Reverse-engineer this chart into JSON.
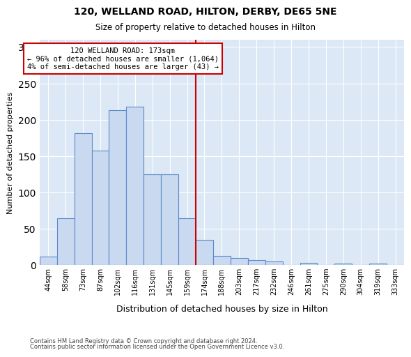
{
  "title": "120, WELLAND ROAD, HILTON, DERBY, DE65 5NE",
  "subtitle": "Size of property relative to detached houses in Hilton",
  "xlabel": "Distribution of detached houses by size in Hilton",
  "ylabel": "Number of detached properties",
  "bar_labels": [
    "44sqm",
    "58sqm",
    "73sqm",
    "87sqm",
    "102sqm",
    "116sqm",
    "131sqm",
    "145sqm",
    "159sqm",
    "174sqm",
    "188sqm",
    "203sqm",
    "217sqm",
    "232sqm",
    "246sqm",
    "261sqm",
    "275sqm",
    "290sqm",
    "304sqm",
    "319sqm",
    "333sqm"
  ],
  "bar_heights": [
    12,
    65,
    182,
    158,
    213,
    218,
    125,
    125,
    65,
    35,
    13,
    10,
    7,
    5,
    0,
    3,
    0,
    2,
    0,
    2,
    0
  ],
  "bar_color": "#c9d9f0",
  "bar_edge_color": "#5b8ac9",
  "vline_bin_index": 9,
  "vline_color": "#cc0000",
  "annotation_text": "120 WELLAND ROAD: 173sqm\n← 96% of detached houses are smaller (1,064)\n4% of semi-detached houses are larger (43) →",
  "annotation_box_edgecolor": "#cc0000",
  "ylim": [
    0,
    310
  ],
  "yticks": [
    0,
    50,
    100,
    150,
    200,
    250,
    300
  ],
  "background_color": "#dce8f5",
  "grid_color": "#ffffff",
  "footer_line1": "Contains HM Land Registry data © Crown copyright and database right 2024.",
  "footer_line2": "Contains public sector information licensed under the Open Government Licence v3.0."
}
